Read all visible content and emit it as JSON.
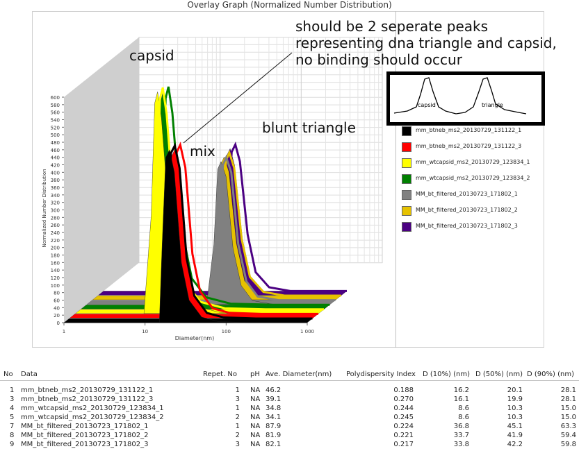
{
  "title": "Overlay Graph (Normalized Number Distribution)",
  "chart_data": {
    "type": "area",
    "title": "Overlay Graph (Normalized Number Distribution)",
    "xlabel": "Diameter(nm)",
    "ylabel": "Normalized Number Distribution",
    "x_scale": "log",
    "xlim": [
      1,
      1000
    ],
    "ylim": [
      0,
      600
    ],
    "x_ticks": [
      "1",
      "10",
      "100",
      "1 000"
    ],
    "y_ticks": [
      "0",
      "20",
      "40",
      "60",
      "80",
      "100",
      "120",
      "140",
      "160",
      "180",
      "200",
      "220",
      "240",
      "260",
      "280",
      "300",
      "320",
      "340",
      "360",
      "380",
      "400",
      "420",
      "440",
      "460",
      "480",
      "500",
      "520",
      "540",
      "560",
      "580",
      "600"
    ],
    "grid": true,
    "legend_position": "right",
    "series": [
      {
        "name": "mm_btneb_ms2_20130729_131122_1",
        "color": "#000000",
        "x": [
          15,
          16.2,
          18,
          20.1,
          23,
          28.1,
          35,
          50,
          80,
          200,
          1000
        ],
        "values": [
          0,
          200,
          440,
          460,
          400,
          160,
          60,
          15,
          3,
          0,
          0
        ]
      },
      {
        "name": "mm_btneb_ms2_20130729_131122_3",
        "color": "#ff0000",
        "x": [
          15,
          16.1,
          18,
          19.9,
          23,
          28.1,
          35,
          50,
          80,
          200,
          1000
        ],
        "values": [
          0,
          190,
          430,
          450,
          390,
          160,
          60,
          15,
          3,
          0,
          0
        ]
      },
      {
        "name": "mm_wtcapsid_ms2_20130729_123834_1",
        "color": "#ffff00",
        "x": [
          7,
          8.6,
          9.5,
          10.3,
          11.5,
          15,
          20,
          30,
          60,
          200,
          1000
        ],
        "values": [
          0,
          260,
          560,
          590,
          520,
          200,
          70,
          20,
          3,
          0,
          0
        ]
      },
      {
        "name": "mm_wtcapsid_ms2_20130729_123834_2",
        "color": "#008000",
        "x": [
          7,
          8.6,
          9.5,
          10.3,
          11.5,
          15,
          20,
          30,
          60,
          200,
          1000
        ],
        "values": [
          0,
          250,
          550,
          580,
          510,
          200,
          70,
          20,
          3,
          0,
          0
        ]
      },
      {
        "name": "MM_bt_filtered_20130723_171802_1",
        "color": "#808080",
        "x": [
          30,
          36.8,
          41,
          45.1,
          52,
          63.3,
          80,
          110,
          200,
          1000
        ],
        "values": [
          0,
          160,
          360,
          380,
          340,
          150,
          50,
          10,
          0,
          0
        ]
      },
      {
        "name": "MM_bt_filtered_20130723_171802_2",
        "color": "#e6c200",
        "x": [
          28,
          33.7,
          38,
          41.9,
          48,
          59.4,
          75,
          110,
          200,
          1000
        ],
        "values": [
          0,
          160,
          360,
          380,
          340,
          150,
          50,
          10,
          0,
          0
        ]
      },
      {
        "name": "MM_bt_filtered_20130723_171802_3",
        "color": "#4b0082",
        "x": [
          28,
          33.8,
          38,
          42.2,
          48,
          59.8,
          75,
          110,
          200,
          1000
        ],
        "values": [
          0,
          160,
          370,
          390,
          345,
          150,
          50,
          10,
          0,
          0
        ]
      }
    ]
  },
  "annotations": {
    "capsid": "capsid",
    "mix": "mix",
    "blunt": "blunt triangle",
    "note_line1": "should be 2 seperate peaks",
    "note_line2": "representing dna triangle and capsid,",
    "note_line3": "no binding should occur",
    "inset_left": "capsid",
    "inset_right": "triangle"
  },
  "table": {
    "headers": [
      "No",
      "Data",
      "Repet. No",
      "pH",
      "Ave. Diameter(nm)",
      "Polydispersity Index",
      "D (10%) (nm)",
      "D (50%) (nm)",
      "D (90%) (nm)"
    ],
    "rows": [
      [
        "1",
        "mm_btneb_ms2_20130729_131122_1",
        "1",
        "NA",
        "46.2",
        "0.188",
        "16.2",
        "20.1",
        "28.1"
      ],
      [
        "3",
        "mm_btneb_ms2_20130729_131122_3",
        "3",
        "NA",
        "39.1",
        "0.270",
        "16.1",
        "19.9",
        "28.1"
      ],
      [
        "4",
        "mm_wtcapsid_ms2_20130729_123834_1",
        "1",
        "NA",
        "34.8",
        "0.244",
        "8.6",
        "10.3",
        "15.0"
      ],
      [
        "5",
        "mm_wtcapsid_ms2_20130729_123834_2",
        "2",
        "NA",
        "34.1",
        "0.245",
        "8.6",
        "10.3",
        "15.0"
      ],
      [
        "7",
        "MM_bt_filtered_20130723_171802_1",
        "1",
        "NA",
        "87.9",
        "0.224",
        "36.8",
        "45.1",
        "63.3"
      ],
      [
        "8",
        "MM_bt_filtered_20130723_171802_2",
        "2",
        "NA",
        "81.9",
        "0.221",
        "33.7",
        "41.9",
        "59.4"
      ],
      [
        "9",
        "MM_bt_filtered_20130723_171802_3",
        "3",
        "NA",
        "82.1",
        "0.217",
        "33.8",
        "42.2",
        "59.8"
      ]
    ]
  }
}
